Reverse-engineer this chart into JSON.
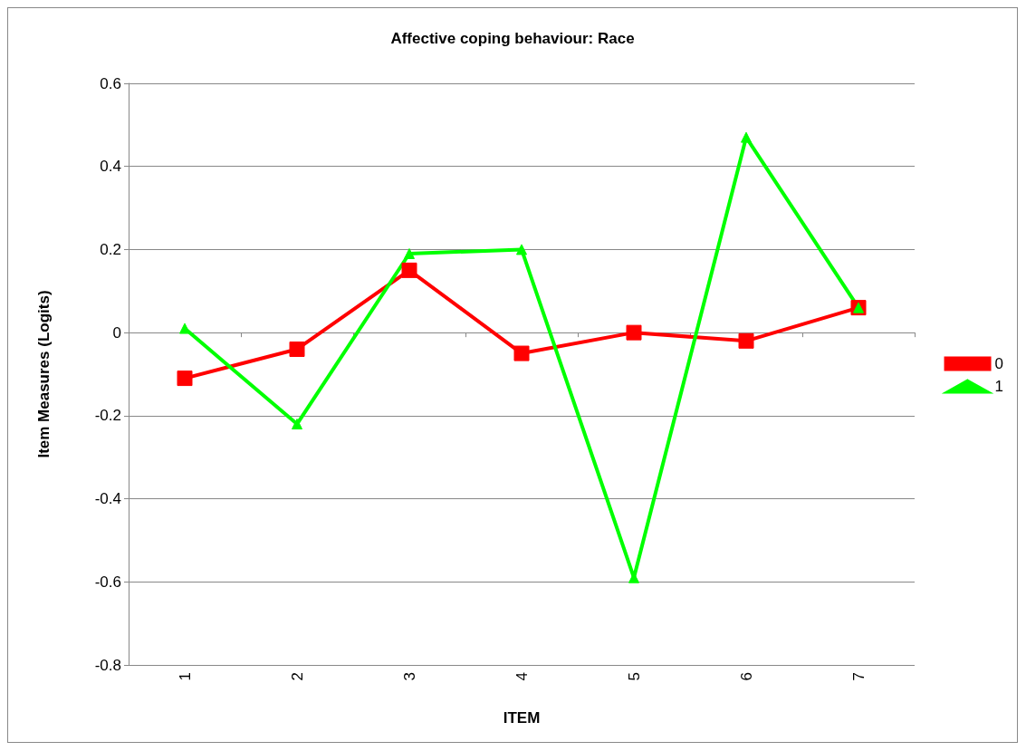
{
  "chart_data": {
    "type": "line",
    "title": "Affective coping behaviour: Race",
    "xlabel": "ITEM",
    "ylabel": "Item Measures (Logits)",
    "categories": [
      "1",
      "2",
      "3",
      "4",
      "5",
      "6",
      "7"
    ],
    "series": [
      {
        "name": "0",
        "color": "#ff0000",
        "marker": "square",
        "values": [
          -0.11,
          -0.04,
          0.15,
          -0.05,
          0,
          -0.02,
          0.06
        ]
      },
      {
        "name": "1",
        "color": "#00ff00",
        "marker": "triangle",
        "values": [
          0.01,
          -0.22,
          0.19,
          0.2,
          -0.59,
          0.47,
          0.06
        ]
      }
    ],
    "ylim": [
      -0.8,
      0.6
    ],
    "yticks": [
      -0.8,
      -0.6,
      -0.4,
      -0.2,
      0,
      0.2,
      0.4,
      0.6
    ],
    "grid": "y",
    "legend": "right",
    "line_style": "solid"
  }
}
